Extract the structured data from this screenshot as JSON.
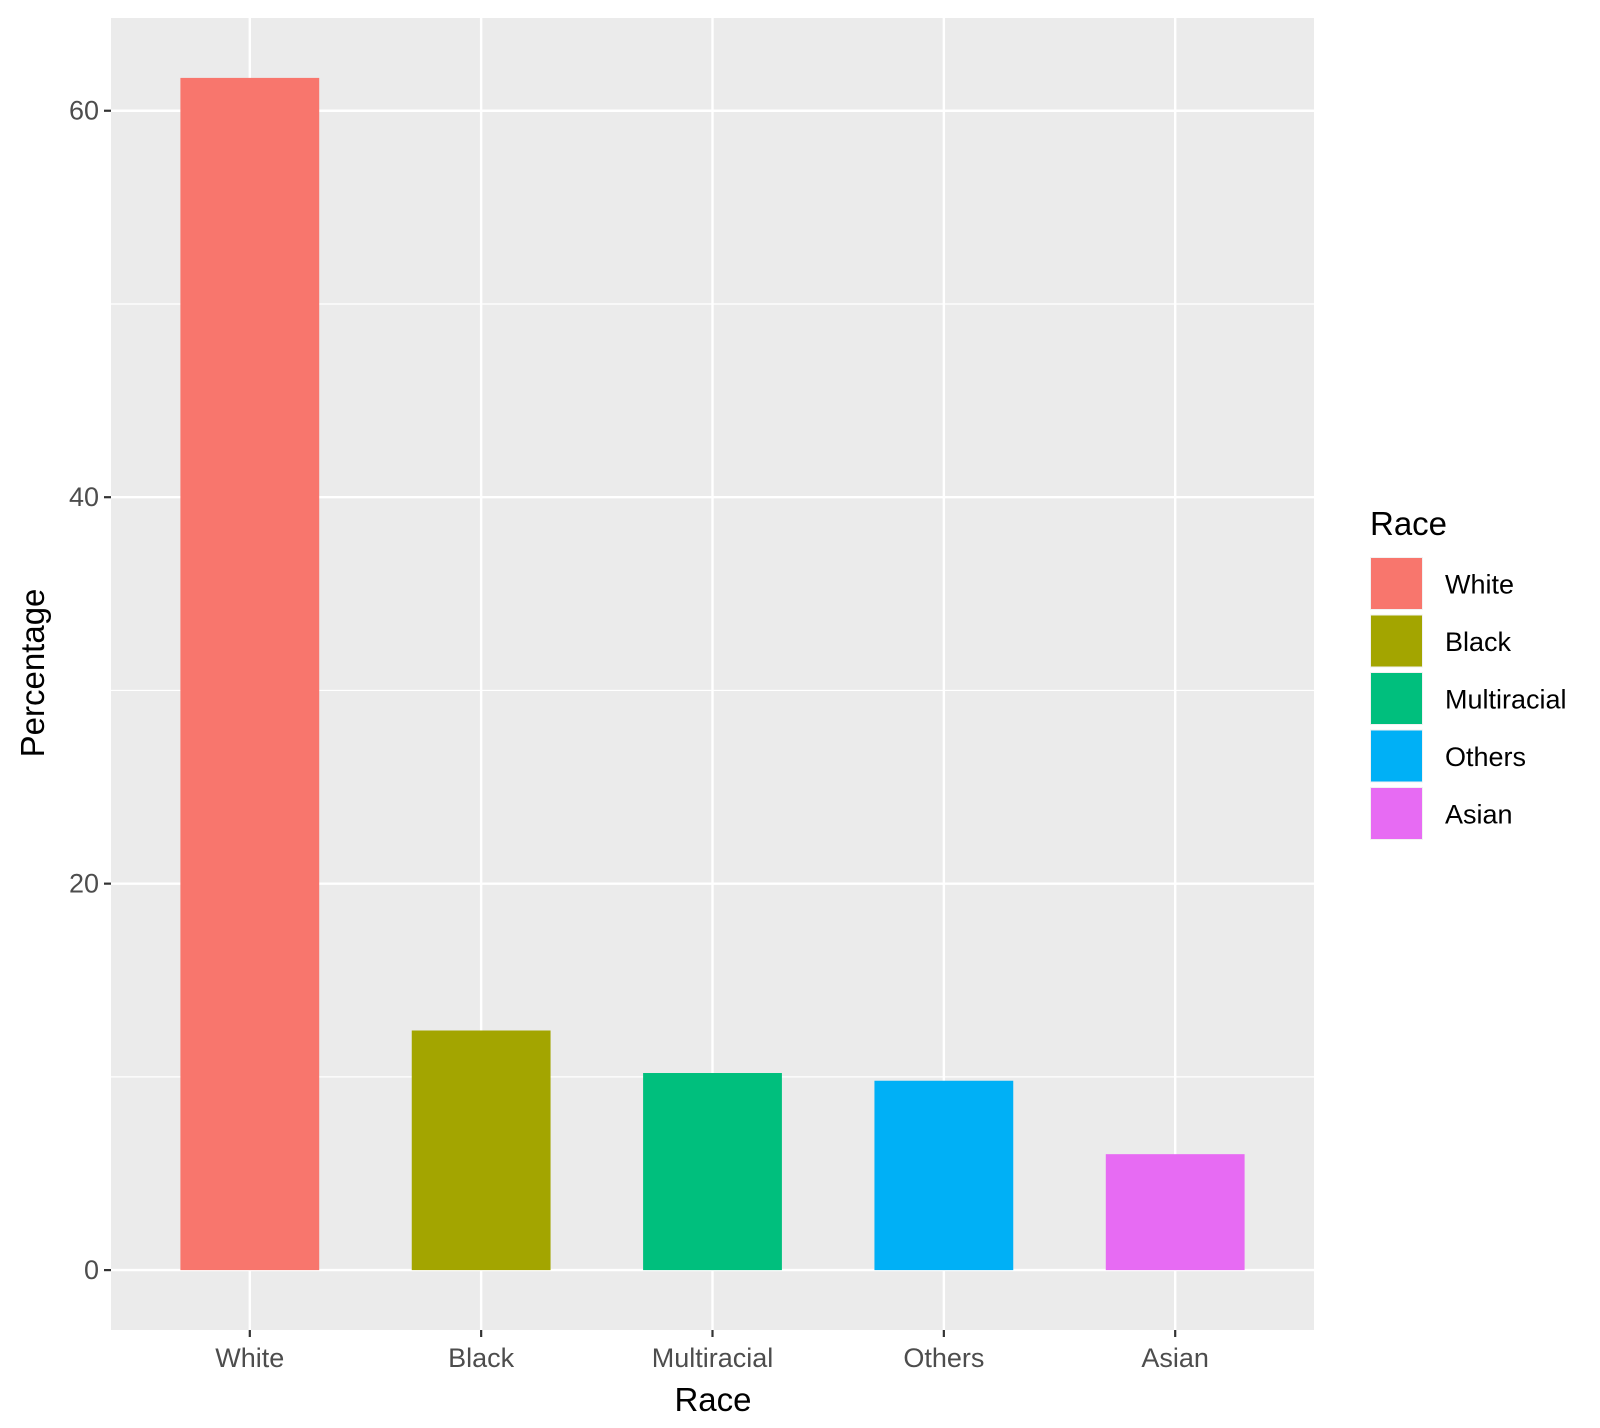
{
  "chart_data": {
    "type": "bar",
    "categories": [
      "White",
      "Black",
      "Multiracial",
      "Others",
      "Asian"
    ],
    "values": [
      61.7,
      12.4,
      10.2,
      9.8,
      6.0
    ],
    "colors": [
      "#F8766D",
      "#A3A500",
      "#00BF7D",
      "#00B0F6",
      "#E76BF3"
    ],
    "xlabel": "Race",
    "ylabel": "Percentage",
    "ylim": [
      -3.1,
      64.8
    ],
    "yticks": [
      0,
      20,
      40,
      60
    ],
    "ytick_labels": [
      "0",
      "20",
      "40",
      "60"
    ],
    "grid": true,
    "panel_background": "#EBEBEB",
    "legend": {
      "title": "Race",
      "position": "right",
      "entries": [
        "White",
        "Black",
        "Multiracial",
        "Others",
        "Asian"
      ]
    }
  }
}
